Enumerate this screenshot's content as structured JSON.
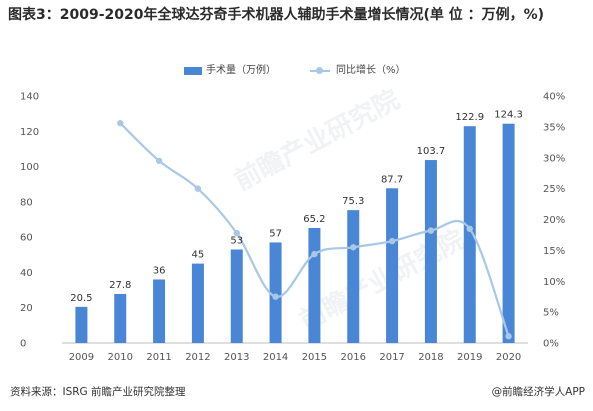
{
  "title": "图表3：2009-2020年全球达芬奇手术机器人辅助手术量增长情况(单 位 ：万例，%)",
  "legend": {
    "bar_label": "手术量（万例）",
    "line_label": "同比增长（%）"
  },
  "footer": {
    "source": "资料来源：ISRG 前瞻产业研究院整理",
    "brand": "@前瞻经济学人APP"
  },
  "watermark": "前瞻产业研究院",
  "colors": {
    "bar": "#4a86d6",
    "line": "#a9c8e6",
    "axis": "#bfbfbf"
  },
  "chart_data": {
    "type": "bar",
    "categories": [
      "2009",
      "2010",
      "2011",
      "2012",
      "2013",
      "2014",
      "2015",
      "2016",
      "2017",
      "2018",
      "2019",
      "2020"
    ],
    "series": [
      {
        "name": "手术量（万例）",
        "type": "bar",
        "axis": "left",
        "values": [
          20.5,
          27.8,
          36,
          45,
          53,
          57,
          65.2,
          75.3,
          87.7,
          103.7,
          122.9,
          124.3
        ]
      },
      {
        "name": "同比增长（%）",
        "type": "line",
        "axis": "right",
        "values": [
          null,
          35.6,
          29.5,
          25,
          17.8,
          7.5,
          14.4,
          15.5,
          16.5,
          18.2,
          18.5,
          1.1
        ]
      }
    ],
    "y_left": {
      "min": 0,
      "max": 140,
      "ticks": [
        0,
        20,
        40,
        60,
        80,
        100,
        120,
        140
      ]
    },
    "y_right": {
      "min": 0,
      "max": 40,
      "ticks": [
        "0%",
        "5%",
        "10%",
        "15%",
        "20%",
        "25%",
        "30%",
        "35%",
        "40%"
      ]
    },
    "data_labels": [
      "20.5",
      "27.8",
      "36",
      "45",
      "53",
      "57",
      "65.2",
      "75.3",
      "87.7",
      "103.7",
      "122.9",
      "124.3"
    ],
    "legend_position": "top-center",
    "grid": false
  }
}
